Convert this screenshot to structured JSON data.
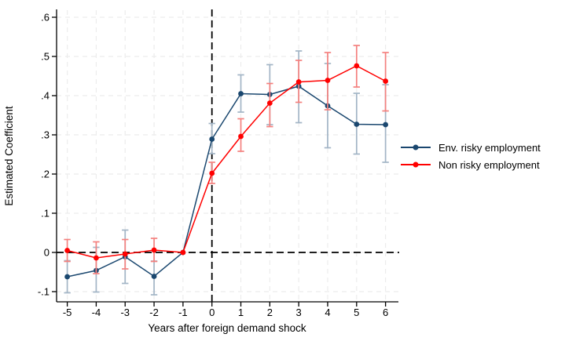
{
  "chart_data": {
    "type": "line",
    "title": "",
    "xlabel": "Years after foreign demand shock",
    "ylabel": "Estimated Coefficient",
    "x": [
      -5,
      -4,
      -3,
      -2,
      -1,
      0,
      1,
      2,
      3,
      4,
      5,
      6
    ],
    "xtick_labels": [
      "-5",
      "-4",
      "-3",
      "-2",
      "-1",
      "0",
      "1",
      "2",
      "3",
      "4",
      "5",
      "6"
    ],
    "ytick_values": [
      0.6,
      0.5,
      0.4,
      0.3,
      0.2,
      0.1,
      0,
      -0.1
    ],
    "ytick_labels": [
      ".6",
      ".5",
      ".4",
      ".3",
      ".2",
      ".1",
      "0",
      "-.1"
    ],
    "ylim": [
      -0.13,
      0.62
    ],
    "xlim": [
      -5.4,
      6.5
    ],
    "grid": true,
    "has_error_bars": true,
    "legend_position": "right-outside",
    "reference_lines": {
      "horizontal_at_y": 0,
      "vertical_at_x": 0,
      "style": "dashed",
      "color": "#000000"
    },
    "grid_color": "#ececec",
    "series": [
      {
        "name": "Env. risky employment",
        "color": "#1a476f",
        "ci_color": "#a3b5c6",
        "values": [
          -0.062,
          -0.046,
          -0.011,
          -0.061,
          0,
          0.289,
          0.405,
          0.403,
          0.424,
          0.374,
          0.327,
          0.326
        ],
        "ci_low": [
          -0.103,
          -0.101,
          -0.079,
          -0.108,
          null,
          0.252,
          0.358,
          0.326,
          0.331,
          0.267,
          0.251,
          0.23
        ],
        "ci_high": [
          -0.021,
          0.013,
          0.057,
          -0.022,
          null,
          0.329,
          0.453,
          0.479,
          0.514,
          0.482,
          0.406,
          0.428
        ]
      },
      {
        "name": "Non risky employment",
        "color": "#ff0000",
        "ci_color": "#f4817f",
        "values": [
          0.005,
          -0.014,
          -0.004,
          0.006,
          0,
          0.202,
          0.296,
          0.381,
          0.435,
          0.439,
          0.476,
          0.437
        ],
        "ci_low": [
          -0.023,
          -0.054,
          -0.042,
          -0.023,
          null,
          0.176,
          0.258,
          0.321,
          0.383,
          0.364,
          0.422,
          0.361
        ],
        "ci_high": [
          0.033,
          0.027,
          0.033,
          0.036,
          null,
          0.23,
          0.341,
          0.431,
          0.49,
          0.51,
          0.528,
          0.51
        ]
      }
    ]
  }
}
